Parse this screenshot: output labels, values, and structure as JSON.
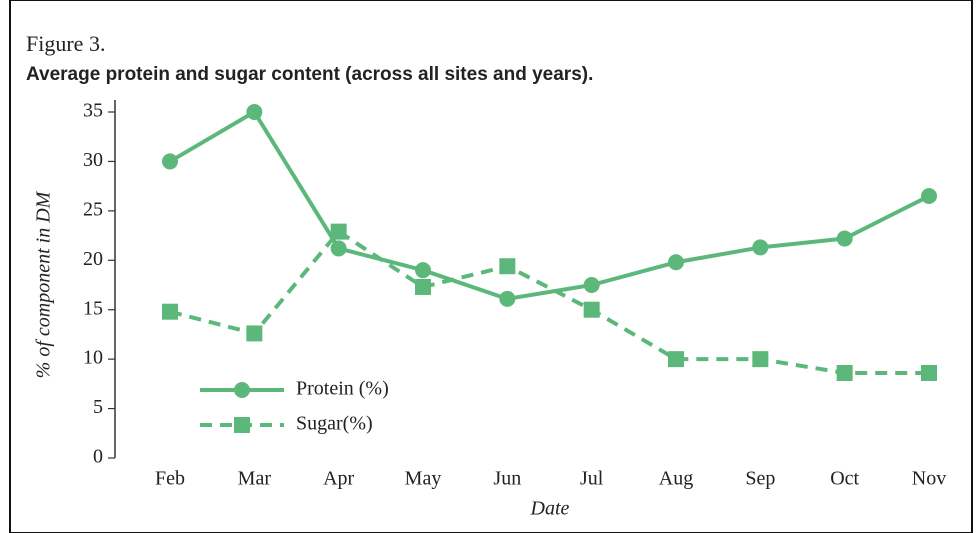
{
  "chart_data": {
    "type": "line",
    "figure_label": "Figure 3.",
    "title": "Average protein and sugar content (across all sites and years).",
    "xlabel": "Date",
    "ylabel": "% of component in DM",
    "categories": [
      "Feb",
      "Mar",
      "Apr",
      "May",
      "Jun",
      "Jul",
      "Aug",
      "Sep",
      "Oct",
      "Nov"
    ],
    "series": [
      {
        "name": "Protein (%)",
        "color": "#5cb87a",
        "marker": "circle",
        "dashed": false,
        "values": [
          30,
          35,
          21.2,
          19,
          16.1,
          17.5,
          19.8,
          21.3,
          22.2,
          26.5
        ]
      },
      {
        "name": "Sugar(%)",
        "color": "#5cb87a",
        "marker": "square",
        "dashed": true,
        "values": [
          14.8,
          12.6,
          22.9,
          17.3,
          19.4,
          15,
          10,
          10,
          8.6,
          8.6
        ]
      }
    ],
    "ylim": [
      0,
      35
    ],
    "yticks": [
      0,
      5,
      10,
      15,
      20,
      25,
      30,
      35
    ],
    "grid": false,
    "legend": "lower left"
  }
}
